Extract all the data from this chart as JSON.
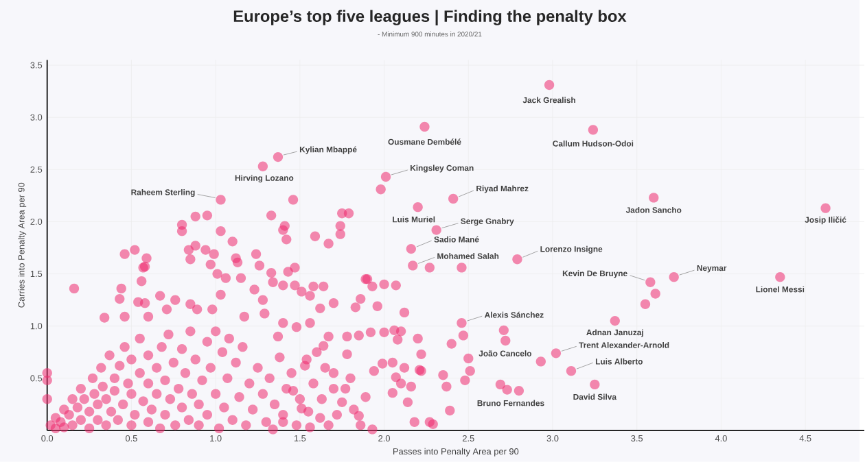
{
  "chart_data": {
    "type": "scatter",
    "title": "Europe’s top five leagues | Finding the penalty box",
    "subtitle": "- Minimum 900 minutes in 2020/21",
    "xlabel": "Passes into Penalty Area per 90",
    "ylabel": "Carries into Penalty Area per 90",
    "color": "#ee2a6e",
    "marker": "circle",
    "grid": true,
    "xlim": [
      0,
      4.85
    ],
    "ylim": [
      0,
      3.55
    ],
    "xticks": [
      {
        "value": 0,
        "label": "0.0"
      },
      {
        "value": 0.5,
        "label": "0.5"
      },
      {
        "value": 1,
        "label": "1.0"
      },
      {
        "value": 1.5,
        "label": "1.5"
      },
      {
        "value": 2,
        "label": "2.0"
      },
      {
        "value": 2.5,
        "label": "2.5"
      },
      {
        "value": 3,
        "label": "3.0"
      },
      {
        "value": 3.5,
        "label": "3.5"
      },
      {
        "value": 4,
        "label": "4.0"
      },
      {
        "value": 4.5,
        "label": "4.5"
      }
    ],
    "yticks": [
      {
        "value": 0.5,
        "label": "0.5"
      },
      {
        "value": 1,
        "label": "1.0"
      },
      {
        "value": 1.5,
        "label": "1.5"
      },
      {
        "value": 2,
        "label": "2.0"
      },
      {
        "value": 2.5,
        "label": "2.5"
      },
      {
        "value": 3,
        "label": "3.0"
      },
      {
        "value": 3.5,
        "label": "3.5"
      }
    ],
    "x": [
      2.98,
      2.24,
      3.24,
      1.37,
      1.28,
      1.03,
      2.01,
      2.41,
      3.6,
      4.62,
      2.2,
      2.31,
      2.16,
      2.17,
      2.79,
      3.72,
      3.58,
      4.35,
      2.46,
      3.37,
      3.02,
      2.93,
      3.11,
      3.25,
      2.8,
      1.98,
      2.27,
      2.46,
      3.61,
      3.55,
      2.73,
      2.69,
      0.8,
      0.8,
      0.88,
      0.95,
      1.03,
      1.1,
      1.33,
      1.46,
      1.4,
      1.41,
      1.42,
      1.59,
      1.67,
      1.74,
      1.74,
      1.75,
      1.79,
      0.46,
      0.52,
      0.59,
      0.58,
      0.84,
      0.88,
      0.94,
      0.85,
      0.99,
      0.97,
      1.01,
      1.12,
      1.13,
      1.24,
      1.26,
      1.33,
      1.43,
      1.47,
      1.89,
      0.16,
      0.44,
      0.43,
      0.57,
      0.56,
      0.54,
      0.34,
      0.46,
      0.6,
      0.58,
      0.67,
      0.71,
      0.76,
      0.85,
      0.89,
      0.98,
      1.03,
      1.06,
      1.15,
      1.23,
      1.28,
      1.29,
      1.17,
      1.34,
      1.4,
      1.47,
      1.51,
      1.58,
      1.56,
      1.64,
      1.62,
      1.7,
      1.83,
      1.86,
      1.9,
      1.93,
      1.96,
      2.0,
      2.07,
      2.12,
      2.1,
      2.06,
      2.08,
      2.0,
      1.92,
      2.2,
      2.22,
      2.21,
      2.14,
      2.18,
      2.27,
      2.29,
      2.07,
      2.05,
      2.1,
      1.99,
      1.94,
      1.93,
      1.86,
      1.85,
      1.89,
      1.75,
      1.77,
      1.67,
      1.62,
      1.56,
      1.7,
      1.78,
      1.85,
      1.78,
      1.67,
      1.64,
      1.54,
      1.48,
      1.4,
      1.37,
      1.56,
      1.46,
      1.51,
      1.4,
      1.34,
      2.4,
      2.47,
      2.71,
      2.72,
      2.5,
      2.51,
      2.48,
      2.35,
      2.37,
      2.39,
      2.22,
      2.05,
      2.12,
      2.16,
      0.02,
      0.05,
      0.05,
      0.08,
      0.1,
      0.1,
      0.13,
      0.15,
      0.15,
      0.18,
      0.2,
      0.2,
      0.22,
      0.25,
      0.25,
      0.27,
      0.28,
      0.3,
      0.3,
      0.32,
      0.33,
      0.35,
      0.35,
      0.37,
      0.38,
      0.4,
      0.4,
      0.42,
      0.43,
      0.45,
      0.46,
      0.48,
      0.5,
      0.5,
      0.5,
      0.52,
      0.55,
      0.55,
      0.57,
      0.6,
      0.6,
      0.6,
      0.62,
      0.65,
      0.65,
      0.67,
      0.68,
      0.7,
      0.7,
      0.72,
      0.73,
      0.75,
      0.76,
      0.78,
      0.8,
      0.8,
      0.82,
      0.84,
      0.85,
      0.86,
      0.88,
      0.9,
      0.9,
      0.92,
      0.95,
      0.95,
      0.97,
      1.0,
      1.0,
      1.02,
      1.04,
      1.05,
      1.07,
      1.08,
      1.1,
      1.12,
      1.14,
      1.16,
      1.18,
      1.2,
      1.22,
      1.25,
      1.28,
      1.3,
      1.32,
      1.35,
      1.38,
      1.4,
      1.42,
      1.45,
      1.48,
      1.5,
      1.53,
      1.55,
      1.58,
      1.6,
      1.63,
      1.65,
      1.7,
      1.72,
      1.8,
      1.82,
      0.0,
      0.0,
      0.0
    ],
    "values": [
      3.31,
      2.91,
      2.88,
      2.62,
      2.53,
      2.21,
      2.43,
      2.22,
      2.23,
      2.13,
      2.14,
      1.92,
      1.74,
      1.58,
      1.64,
      1.47,
      1.42,
      1.47,
      1.03,
      1.05,
      0.74,
      0.66,
      0.57,
      0.44,
      0.38,
      2.31,
      1.56,
      1.56,
      1.31,
      1.21,
      0.39,
      0.44,
      1.97,
      1.91,
      2.05,
      2.06,
      1.91,
      1.81,
      2.06,
      2.21,
      1.92,
      1.96,
      1.83,
      1.86,
      1.79,
      1.96,
      1.88,
      2.08,
      2.08,
      1.69,
      1.73,
      1.65,
      1.57,
      1.73,
      1.77,
      1.73,
      1.64,
      1.69,
      1.59,
      1.5,
      1.65,
      1.61,
      1.69,
      1.58,
      1.51,
      1.52,
      1.56,
      1.45,
      1.36,
      1.36,
      1.26,
      1.56,
      1.43,
      1.23,
      1.08,
      1.09,
      1.09,
      1.22,
      1.29,
      1.16,
      1.25,
      1.21,
      1.16,
      1.16,
      1.3,
      1.46,
      1.46,
      1.35,
      1.25,
      1.12,
      1.09,
      1.42,
      1.39,
      1.39,
      1.33,
      1.38,
      1.29,
      1.38,
      1.17,
      1.22,
      1.18,
      1.26,
      1.45,
      1.38,
      1.19,
      1.4,
      1.39,
      1.13,
      0.95,
      0.96,
      0.87,
      0.94,
      0.94,
      0.88,
      0.73,
      0.58,
      0.27,
      0.08,
      0.08,
      0.06,
      0.51,
      0.36,
      0.45,
      0.64,
      0.57,
      0.01,
      0.05,
      0.14,
      0.32,
      0.27,
      0.4,
      0.05,
      0.12,
      0.03,
      0.55,
      0.73,
      0.91,
      0.9,
      0.9,
      0.81,
      0.68,
      0.99,
      1.03,
      0.9,
      1.03,
      0.38,
      0.21,
      0.08,
      0.01,
      0.83,
      0.91,
      0.96,
      0.86,
      0.69,
      0.57,
      0.48,
      0.53,
      0.42,
      0.19,
      0.57,
      0.65,
      0.6,
      0.42,
      0.05,
      0.02,
      0.12,
      0.08,
      0.2,
      0.03,
      0.15,
      0.3,
      0.05,
      0.22,
      0.1,
      0.4,
      0.3,
      0.02,
      0.18,
      0.5,
      0.35,
      0.1,
      0.25,
      0.6,
      0.42,
      0.05,
      0.3,
      0.72,
      0.18,
      0.5,
      0.38,
      0.1,
      0.62,
      0.25,
      0.8,
      0.45,
      0.05,
      0.35,
      0.68,
      0.15,
      0.55,
      0.88,
      0.28,
      0.45,
      0.72,
      0.08,
      0.2,
      0.6,
      0.35,
      0.02,
      0.8,
      0.15,
      0.48,
      0.92,
      0.3,
      0.65,
      0.05,
      0.4,
      0.22,
      0.78,
      0.55,
      0.1,
      0.95,
      0.35,
      0.68,
      0.25,
      0.05,
      0.48,
      0.85,
      0.15,
      0.6,
      0.35,
      0.95,
      0.02,
      0.75,
      0.22,
      0.5,
      0.88,
      0.1,
      0.65,
      0.32,
      0.8,
      0.05,
      0.45,
      0.2,
      0.6,
      0.35,
      0.08,
      0.5,
      0.25,
      0.7,
      0.15,
      0.4,
      0.55,
      0.05,
      0.3,
      0.62,
      0.18,
      0.45,
      0.75,
      0.3,
      0.6,
      0.4,
      0.15,
      0.5,
      0.2,
      0.48,
      0.55,
      0.3
    ],
    "annotations": [
      {
        "text": "Jack Grealish",
        "x": 2.98,
        "y": 3.31
      },
      {
        "text": "Ousmane Dembélé",
        "x": 2.24,
        "y": 2.91
      },
      {
        "text": "Callum Hudson-Odoi",
        "x": 3.24,
        "y": 2.88
      },
      {
        "text": "Kylian Mbappé",
        "x": 1.37,
        "y": 2.62
      },
      {
        "text": "Hirving Lozano",
        "x": 1.28,
        "y": 2.53
      },
      {
        "text": "Raheem Sterling",
        "x": 1.03,
        "y": 2.21
      },
      {
        "text": "Kingsley Coman",
        "x": 2.01,
        "y": 2.43
      },
      {
        "text": "Riyad Mahrez",
        "x": 2.41,
        "y": 2.22
      },
      {
        "text": "Jadon Sancho",
        "x": 3.6,
        "y": 2.23
      },
      {
        "text": "Josip Iličić",
        "x": 4.62,
        "y": 2.13
      },
      {
        "text": "Luis Muriel",
        "x": 2.2,
        "y": 2.14
      },
      {
        "text": "Serge Gnabry",
        "x": 2.31,
        "y": 1.92
      },
      {
        "text": "Sadio Mané",
        "x": 2.16,
        "y": 1.74
      },
      {
        "text": "Mohamed Salah",
        "x": 2.17,
        "y": 1.58
      },
      {
        "text": "Lorenzo Insigne",
        "x": 2.79,
        "y": 1.64
      },
      {
        "text": "Neymar",
        "x": 3.72,
        "y": 1.47
      },
      {
        "text": "Kevin De Bruyne",
        "x": 3.58,
        "y": 1.42
      },
      {
        "text": "Lionel Messi",
        "x": 4.35,
        "y": 1.47
      },
      {
        "text": "Alexis Sánchez",
        "x": 2.46,
        "y": 1.03
      },
      {
        "text": "Adnan Januzaj",
        "x": 3.37,
        "y": 1.05
      },
      {
        "text": "Trent Alexander-Arnold",
        "x": 3.02,
        "y": 0.74
      },
      {
        "text": "João Cancelo",
        "x": 2.93,
        "y": 0.66
      },
      {
        "text": "Luis Alberto",
        "x": 3.11,
        "y": 0.57
      },
      {
        "text": "David Silva",
        "x": 3.25,
        "y": 0.44
      },
      {
        "text": "Bruno Fernandes",
        "x": 2.8,
        "y": 0.38
      }
    ]
  }
}
